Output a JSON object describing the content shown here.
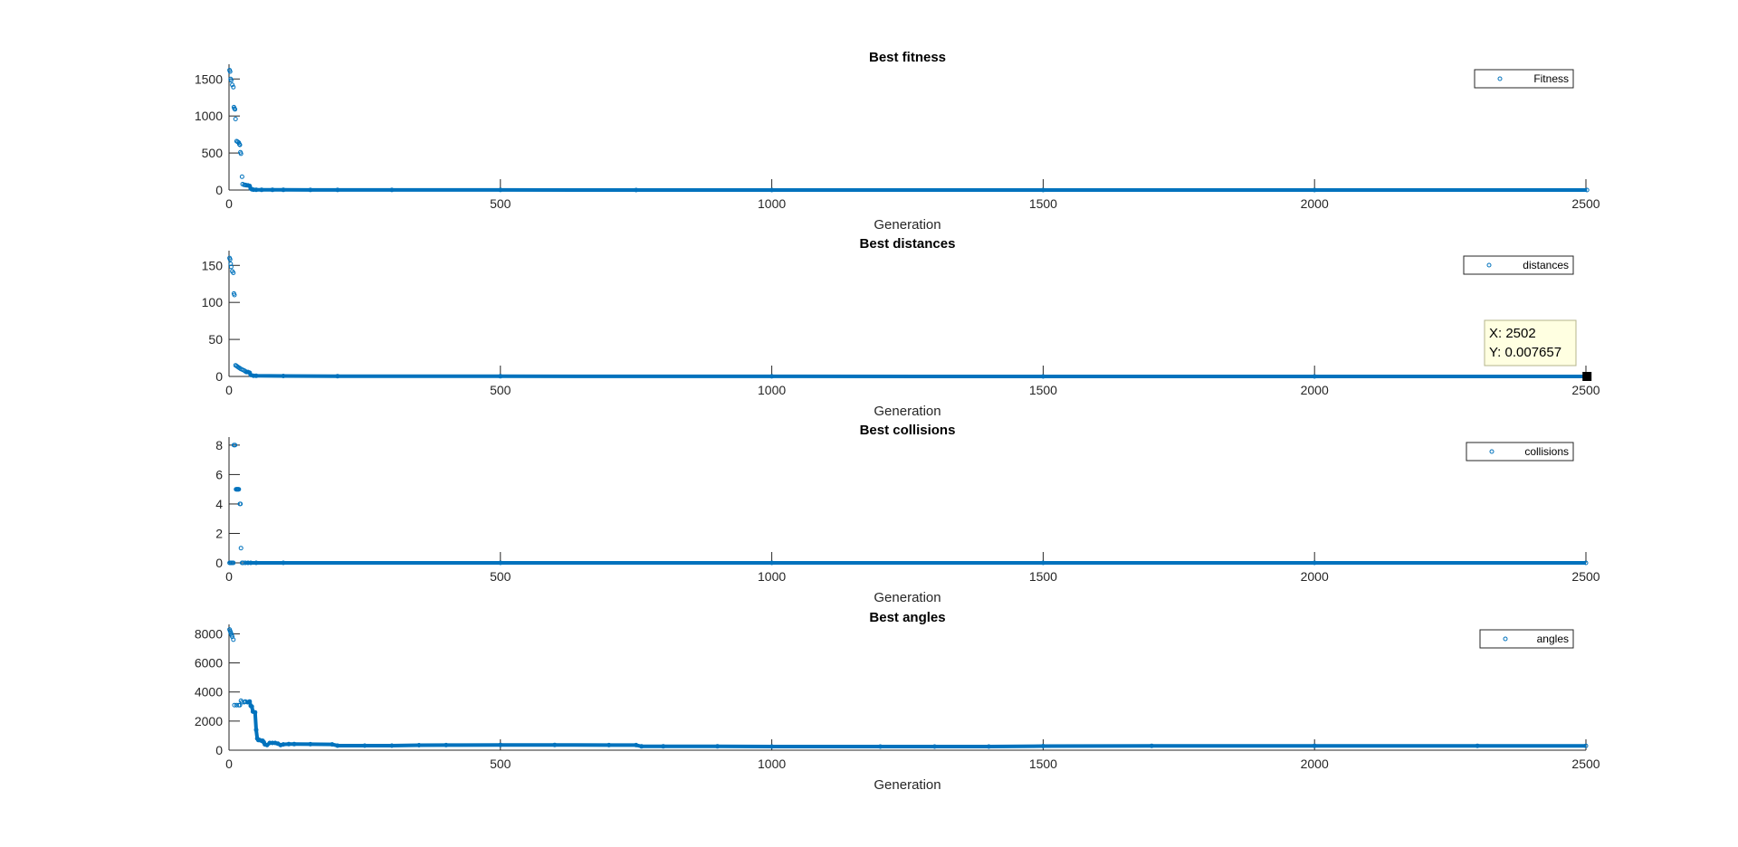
{
  "colors": {
    "series": "#0072BD",
    "axis": "#262626",
    "background": "#ffffff",
    "tooltip_bg": "#FFFFE1",
    "tooltip_border": "#B4B48C",
    "marker_selected": "#000000"
  },
  "chart_data": [
    {
      "type": "scatter",
      "title": "Best fitness",
      "xlabel": "Generation",
      "ylabel": "",
      "xlim": [
        0,
        2500
      ],
      "ylim": [
        0,
        1650
      ],
      "xticks": [
        0,
        500,
        1000,
        1500,
        2000,
        2500
      ],
      "yticks": [
        0,
        500,
        1000,
        1500
      ],
      "grid": false,
      "legend": {
        "position": "top-right",
        "entries": [
          "Fitness"
        ]
      },
      "series": [
        {
          "name": "Fitness",
          "marker": "circle",
          "points": [
            [
              1,
              1620
            ],
            [
              2,
              1600
            ],
            [
              3,
              1500
            ],
            [
              4,
              1480
            ],
            [
              6,
              1420
            ],
            [
              8,
              1390
            ],
            [
              9,
              1120
            ],
            [
              10,
              1100
            ],
            [
              11,
              1090
            ],
            [
              12,
              960
            ],
            [
              14,
              660
            ],
            [
              16,
              650
            ],
            [
              18,
              640
            ],
            [
              19,
              620
            ],
            [
              20,
              610
            ],
            [
              21,
              510
            ],
            [
              22,
              490
            ],
            [
              24,
              180
            ],
            [
              25,
              80
            ],
            [
              28,
              70
            ],
            [
              30,
              68
            ],
            [
              32,
              65
            ],
            [
              35,
              62
            ],
            [
              38,
              55
            ],
            [
              40,
              20
            ],
            [
              42,
              10
            ],
            [
              45,
              5
            ],
            [
              50,
              4
            ],
            [
              60,
              3
            ],
            [
              80,
              2
            ],
            [
              100,
              2
            ],
            [
              150,
              1.5
            ],
            [
              200,
              1.2
            ],
            [
              300,
              1
            ],
            [
              500,
              0.8
            ],
            [
              750,
              0.5
            ],
            [
              1000,
              0.3
            ],
            [
              1500,
              0.1
            ],
            [
              2000,
              0.05
            ],
            [
              2502,
              0.01
            ]
          ]
        }
      ]
    },
    {
      "type": "scatter",
      "title": "Best distances",
      "xlabel": "Generation",
      "ylabel": "",
      "xlim": [
        0,
        2500
      ],
      "ylim": [
        0,
        165
      ],
      "xticks": [
        0,
        500,
        1000,
        1500,
        2000,
        2500
      ],
      "yticks": [
        0,
        50,
        100,
        150
      ],
      "grid": false,
      "legend": {
        "position": "top-right",
        "entries": [
          "distances"
        ]
      },
      "annotations": [
        {
          "x_text": "X: 2502",
          "y_text": "Y: 0.007657",
          "x": 2502,
          "y": 0.007657
        }
      ],
      "series": [
        {
          "name": "distances",
          "marker": "circle",
          "points": [
            [
              1,
              160
            ],
            [
              2,
              158
            ],
            [
              3,
              152
            ],
            [
              4,
              148
            ],
            [
              6,
              142
            ],
            [
              8,
              140
            ],
            [
              9,
              112
            ],
            [
              10,
              110
            ],
            [
              12,
              15
            ],
            [
              14,
              14
            ],
            [
              16,
              13
            ],
            [
              18,
              12
            ],
            [
              20,
              11
            ],
            [
              22,
              10
            ],
            [
              25,
              9
            ],
            [
              28,
              8
            ],
            [
              30,
              7
            ],
            [
              32,
              6
            ],
            [
              35,
              6
            ],
            [
              38,
              5
            ],
            [
              40,
              2
            ],
            [
              45,
              1
            ],
            [
              50,
              0.8
            ],
            [
              100,
              0.6
            ],
            [
              200,
              0.4
            ],
            [
              500,
              0.2
            ],
            [
              1000,
              0.1
            ],
            [
              1500,
              0.05
            ],
            [
              2000,
              0.02
            ],
            [
              2502,
              0.007657
            ]
          ]
        }
      ]
    },
    {
      "type": "scatter",
      "title": "Best collisions",
      "xlabel": "Generation",
      "ylabel": "",
      "xlim": [
        0,
        2500
      ],
      "ylim": [
        0,
        8.3
      ],
      "xticks": [
        0,
        500,
        1000,
        1500,
        2000,
        2500
      ],
      "yticks": [
        0,
        2,
        4,
        6,
        8
      ],
      "grid": false,
      "legend": {
        "position": "top-right",
        "entries": [
          "collisions"
        ]
      },
      "series": [
        {
          "name": "collisions",
          "marker": "circle",
          "points": [
            [
              1,
              0
            ],
            [
              2,
              0
            ],
            [
              4,
              0
            ],
            [
              6,
              0
            ],
            [
              8,
              0
            ],
            [
              9,
              8
            ],
            [
              11,
              8
            ],
            [
              13,
              5
            ],
            [
              14,
              5
            ],
            [
              15,
              5
            ],
            [
              16,
              5
            ],
            [
              17,
              5
            ],
            [
              18,
              5
            ],
            [
              20,
              4
            ],
            [
              21,
              4
            ],
            [
              22,
              1
            ],
            [
              24,
              0
            ],
            [
              26,
              0
            ],
            [
              30,
              0
            ],
            [
              35,
              0
            ],
            [
              40,
              0
            ],
            [
              50,
              0
            ],
            [
              100,
              0
            ],
            [
              500,
              0
            ],
            [
              1000,
              0
            ],
            [
              1500,
              0
            ],
            [
              2000,
              0
            ],
            [
              2500,
              0
            ]
          ]
        }
      ]
    },
    {
      "type": "scatter",
      "title": "Best angles",
      "xlabel": "Generation",
      "ylabel": "",
      "xlim": [
        0,
        2500
      ],
      "ylim": [
        0,
        8400
      ],
      "xticks": [
        0,
        500,
        1000,
        1500,
        2000,
        2500
      ],
      "yticks": [
        0,
        2000,
        4000,
        6000,
        8000
      ],
      "grid": false,
      "legend": {
        "position": "top-right",
        "entries": [
          "angles"
        ]
      },
      "series": [
        {
          "name": "angles",
          "marker": "circle",
          "points": [
            [
              1,
              8300
            ],
            [
              2,
              8200
            ],
            [
              3,
              8100
            ],
            [
              4,
              8000
            ],
            [
              5,
              7900
            ],
            [
              6,
              7800
            ],
            [
              8,
              7600
            ],
            [
              10,
              3100
            ],
            [
              14,
              3100
            ],
            [
              18,
              3100
            ],
            [
              20,
              3100
            ],
            [
              22,
              3400
            ],
            [
              24,
              3300
            ],
            [
              28,
              3300
            ],
            [
              30,
              3350
            ],
            [
              34,
              3300
            ],
            [
              38,
              3350
            ],
            [
              40,
              3050
            ],
            [
              42,
              3000
            ],
            [
              44,
              2650
            ],
            [
              48,
              2600
            ],
            [
              50,
              1400
            ],
            [
              52,
              800
            ],
            [
              54,
              700
            ],
            [
              56,
              700
            ],
            [
              60,
              650
            ],
            [
              62,
              650
            ],
            [
              64,
              550
            ],
            [
              66,
              400
            ],
            [
              70,
              350
            ],
            [
              75,
              500
            ],
            [
              80,
              500
            ],
            [
              85,
              500
            ],
            [
              90,
              450
            ],
            [
              95,
              350
            ],
            [
              100,
              400
            ],
            [
              110,
              420
            ],
            [
              120,
              420
            ],
            [
              150,
              410
            ],
            [
              190,
              400
            ],
            [
              200,
              310
            ],
            [
              250,
              310
            ],
            [
              300,
              310
            ],
            [
              350,
              340
            ],
            [
              400,
              350
            ],
            [
              500,
              360
            ],
            [
              600,
              360
            ],
            [
              700,
              350
            ],
            [
              750,
              350
            ],
            [
              760,
              260
            ],
            [
              800,
              260
            ],
            [
              900,
              260
            ],
            [
              1000,
              250
            ],
            [
              1200,
              250
            ],
            [
              1300,
              250
            ],
            [
              1400,
              250
            ],
            [
              1500,
              280
            ],
            [
              1700,
              300
            ],
            [
              2000,
              300
            ],
            [
              2300,
              300
            ],
            [
              2500,
              300
            ]
          ]
        }
      ]
    }
  ]
}
